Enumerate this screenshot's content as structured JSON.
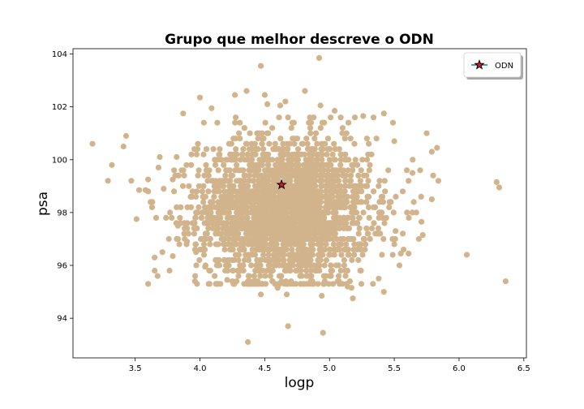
{
  "chart_data": {
    "type": "scatter",
    "title": "Grupo que melhor descreve o ODN",
    "xlabel": "logp",
    "ylabel": "psa",
    "xlim": [
      3.02,
      6.52
    ],
    "ylim": [
      92.5,
      104.2
    ],
    "xticks": [
      3.5,
      4.0,
      4.5,
      5.0,
      5.5,
      6.0,
      6.5
    ],
    "yticks": [
      94,
      96,
      98,
      100,
      102,
      104
    ],
    "xtick_labels": [
      "3.5",
      "4.0",
      "4.5",
      "5.0",
      "5.5",
      "6.0",
      "6.5"
    ],
    "ytick_labels": [
      "94",
      "96",
      "98",
      "100",
      "102",
      "104"
    ],
    "grid": false,
    "legend_position": "top-right",
    "points_color": "#d2b48c",
    "highlight_color": "#e8141e",
    "dense_cluster": {
      "x_mean": 4.65,
      "x_std": 0.33,
      "y_mean": 98.1,
      "y_std": 1.35,
      "count": 2600
    },
    "sparse_points": [
      [
        3.17,
        100.6
      ],
      [
        3.29,
        99.2
      ],
      [
        3.32,
        99.8
      ],
      [
        3.41,
        100.5
      ],
      [
        3.43,
        100.9
      ],
      [
        3.47,
        99.2
      ],
      [
        3.51,
        97.75
      ],
      [
        3.53,
        98.85
      ],
      [
        3.58,
        98.85
      ],
      [
        3.6,
        99.25
      ],
      [
        3.63,
        98.2
      ],
      [
        3.65,
        96.3
      ],
      [
        3.68,
        99.7
      ],
      [
        3.69,
        100.1
      ],
      [
        3.71,
        96.5
      ],
      [
        3.72,
        98.9
      ],
      [
        3.76,
        97.0
      ],
      [
        3.79,
        96.35
      ],
      [
        3.82,
        100.1
      ],
      [
        3.87,
        101.75
      ],
      [
        4.0,
        102.35
      ],
      [
        4.03,
        101.4
      ],
      [
        4.09,
        101.95
      ],
      [
        4.27,
        102.45
      ],
      [
        4.36,
        102.6
      ],
      [
        4.47,
        103.55
      ],
      [
        4.5,
        102.45
      ],
      [
        4.52,
        102.1
      ],
      [
        4.62,
        102.05
      ],
      [
        4.66,
        102.2
      ],
      [
        4.81,
        102.6
      ],
      [
        4.92,
        103.85
      ],
      [
        4.93,
        102.05
      ],
      [
        5.04,
        101.85
      ],
      [
        5.26,
        101.65
      ],
      [
        5.34,
        101.6
      ],
      [
        5.42,
        101.75
      ],
      [
        5.49,
        101.4
      ],
      [
        5.5,
        100.7
      ],
      [
        5.61,
        99.2
      ],
      [
        5.64,
        99.5
      ],
      [
        5.7,
        99.6
      ],
      [
        5.8,
        99.4
      ],
      [
        5.79,
        100.3
      ],
      [
        5.83,
        100.45
      ],
      [
        5.84,
        99.2
      ],
      [
        5.67,
        98.0
      ],
      [
        5.71,
        97.65
      ],
      [
        5.79,
        98.5
      ],
      [
        5.69,
        97.0
      ],
      [
        5.72,
        97.15
      ],
      [
        5.61,
        96.45
      ],
      [
        5.54,
        96.0
      ],
      [
        5.55,
        96.45
      ],
      [
        5.38,
        95.5
      ],
      [
        5.42,
        95.0
      ],
      [
        5.18,
        94.75
      ],
      [
        5.14,
        95.2
      ],
      [
        5.17,
        95.15
      ],
      [
        4.94,
        94.85
      ],
      [
        4.95,
        93.45
      ],
      [
        4.68,
        93.7
      ],
      [
        4.67,
        94.9
      ],
      [
        4.6,
        95.15
      ],
      [
        4.47,
        94.9
      ],
      [
        4.37,
        93.1
      ],
      [
        4.21,
        95.45
      ],
      [
        4.04,
        95.95
      ],
      [
        3.97,
        96.5
      ],
      [
        6.06,
        96.4
      ],
      [
        6.29,
        99.15
      ],
      [
        6.31,
        98.95
      ],
      [
        6.36,
        95.4
      ],
      [
        5.5,
        96.8
      ],
      [
        5.51,
        97.3
      ],
      [
        3.85,
        97.6
      ],
      [
        3.9,
        96.9
      ],
      [
        3.79,
        99.25
      ],
      [
        3.8,
        98.8
      ],
      [
        3.83,
        97.5
      ]
    ],
    "highlight_point": {
      "name": "ODN",
      "x": 4.63,
      "y": 99.05
    }
  }
}
